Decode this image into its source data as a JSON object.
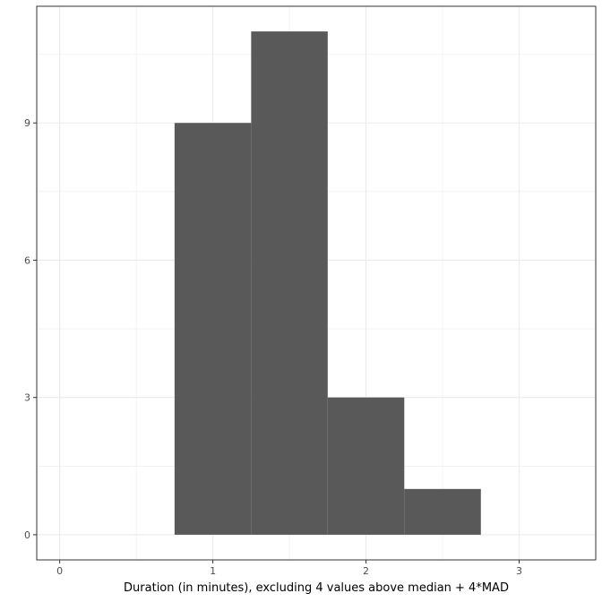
{
  "chart_data": {
    "type": "bar",
    "histogram": true,
    "bins": [
      {
        "x0": 0.75,
        "x1": 1.25,
        "count": 9
      },
      {
        "x0": 1.25,
        "x1": 1.75,
        "count": 11
      },
      {
        "x0": 1.75,
        "x1": 2.25,
        "count": 3
      },
      {
        "x0": 2.25,
        "x1": 2.75,
        "count": 1
      }
    ],
    "xlabel": "Duration (in minutes), excluding 4 values above median + 4*MAD",
    "ylabel": "",
    "title": "",
    "xlim": [
      -0.15,
      3.5
    ],
    "ylim": [
      -0.55,
      11.55
    ],
    "x_ticks": [
      "0",
      "1",
      "2",
      "3"
    ],
    "y_ticks": [
      "0",
      "3",
      "6",
      "9"
    ],
    "grid": true,
    "bar_color": "#595959",
    "grid_color": "#ebebeb",
    "border_color": "#333333"
  }
}
